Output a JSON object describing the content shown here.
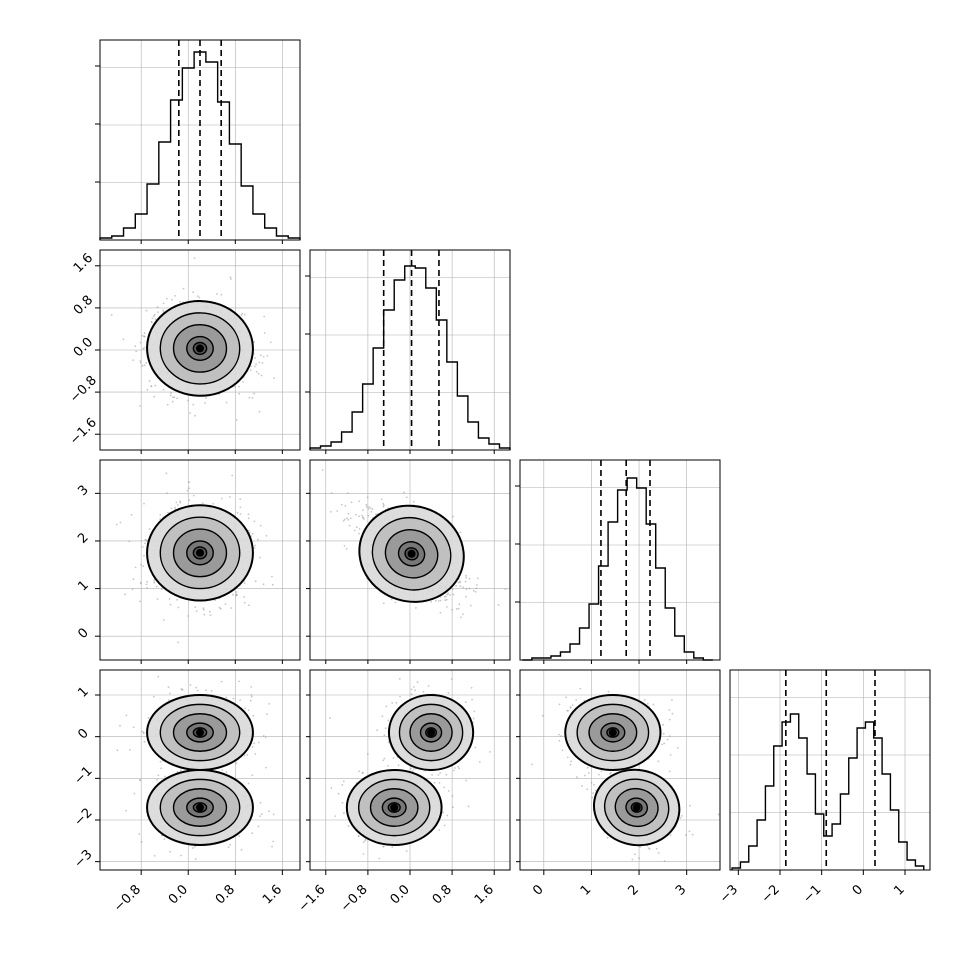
{
  "chart_data": {
    "type": "corner",
    "n_params": 4,
    "grid": true,
    "colors": {
      "line": "#000000",
      "grid": "#b0b0b0",
      "points": "#999999",
      "bins": [
        "#f2f2f2",
        "#d9d9d9",
        "#bdbdbd",
        "#969696",
        "#737373",
        "#525252",
        "#252525"
      ]
    },
    "axes": [
      {
        "ticks": [
          -0.8,
          0.0,
          0.8,
          1.6
        ],
        "tick_labels": [
          "−0.8",
          "0.0",
          "0.8",
          "1.6"
        ],
        "range": [
          -1.5,
          1.9
        ]
      },
      {
        "ticks": [
          -1.6,
          -0.8,
          0.0,
          0.8,
          1.6
        ],
        "tick_labels": [
          "−1.6",
          "−0.8",
          "0.0",
          "0.8",
          "1.6"
        ],
        "range": [
          -1.9,
          1.9
        ]
      },
      {
        "ticks": [
          0,
          1,
          2,
          3
        ],
        "tick_labels": [
          "0",
          "1",
          "2",
          "3"
        ],
        "range": [
          -0.5,
          3.7
        ]
      },
      {
        "ticks": [
          -3,
          -2,
          -1,
          0,
          1
        ],
        "tick_labels": [
          "−3",
          "−2",
          "−1",
          "0",
          "1"
        ],
        "range": [
          -3.2,
          1.6
        ]
      }
    ],
    "quantiles": [
      [
        -0.16,
        0.2,
        0.56
      ],
      [
        -0.5,
        0.03,
        0.55
      ],
      [
        1.2,
        1.73,
        2.23
      ],
      [
        -1.86,
        -0.89,
        0.28
      ]
    ],
    "histograms": [
      {
        "bins_centers": [
          -1.4,
          -1.2,
          -1.0,
          -0.8,
          -0.6,
          -0.4,
          -0.2,
          0.0,
          0.2,
          0.4,
          0.6,
          0.8,
          1.0,
          1.2,
          1.4,
          1.6,
          1.8
        ],
        "counts": [
          1,
          2,
          6,
          13,
          28,
          49,
          70,
          86,
          94,
          89,
          69,
          48,
          27,
          13,
          6,
          2,
          1
        ],
        "ylim": [
          0,
          100
        ]
      },
      {
        "bins_centers": [
          -1.8,
          -1.6,
          -1.4,
          -1.2,
          -1.0,
          -0.8,
          -0.6,
          -0.4,
          -0.2,
          0.0,
          0.2,
          0.4,
          0.6,
          0.8,
          1.0,
          1.2,
          1.4,
          1.6,
          1.8
        ],
        "counts": [
          1,
          2,
          4,
          9,
          19,
          33,
          51,
          70,
          85,
          92,
          91,
          81,
          65,
          44,
          27,
          14,
          6,
          3,
          1
        ],
        "ylim": [
          0,
          100
        ]
      },
      {
        "bins_centers": [
          -0.35,
          -0.15,
          0.05,
          0.25,
          0.45,
          0.65,
          0.85,
          1.05,
          1.25,
          1.45,
          1.65,
          1.85,
          2.05,
          2.25,
          2.45,
          2.65,
          2.85,
          3.05,
          3.25,
          3.45
        ],
        "counts": [
          0,
          1,
          1,
          2,
          4,
          8,
          16,
          28,
          47,
          69,
          85,
          91,
          86,
          68,
          46,
          26,
          12,
          4,
          1,
          0
        ],
        "ylim": [
          0,
          100
        ]
      },
      {
        "bins_centers": [
          -3.05,
          -2.85,
          -2.65,
          -2.45,
          -2.25,
          -2.05,
          -1.85,
          -1.65,
          -1.45,
          -1.25,
          -1.05,
          -0.85,
          -0.65,
          -0.45,
          -0.25,
          -0.05,
          0.15,
          0.35,
          0.55,
          0.75,
          0.95,
          1.15,
          1.35
        ],
        "counts": [
          1,
          4,
          12,
          25,
          42,
          62,
          74,
          78,
          66,
          48,
          28,
          17,
          23,
          38,
          56,
          71,
          74,
          66,
          48,
          30,
          14,
          5,
          2
        ],
        "ylim": [
          0,
          100
        ]
      }
    ],
    "densities": [
      {
        "row": 1,
        "col": 0,
        "modes": [
          [
            0.2,
            0.03,
            0.45,
            0.45,
            -0.05
          ]
        ]
      },
      {
        "row": 2,
        "col": 0,
        "modes": [
          [
            0.2,
            1.75,
            0.45,
            0.5,
            0.0
          ]
        ]
      },
      {
        "row": 2,
        "col": 1,
        "modes": [
          [
            0.03,
            1.73,
            0.5,
            0.5,
            -0.5
          ]
        ]
      },
      {
        "row": 3,
        "col": 0,
        "modes": [
          [
            0.2,
            0.1,
            0.45,
            0.45,
            0.0
          ],
          [
            0.2,
            -1.7,
            0.45,
            0.45,
            0.0
          ]
        ]
      },
      {
        "row": 3,
        "col": 1,
        "modes": [
          [
            0.4,
            0.1,
            0.4,
            0.45,
            0.0
          ],
          [
            -0.3,
            -1.7,
            0.45,
            0.45,
            0.0
          ]
        ]
      },
      {
        "row": 3,
        "col": 2,
        "modes": [
          [
            1.45,
            0.1,
            0.5,
            0.45,
            0.0
          ],
          [
            1.95,
            -1.7,
            0.45,
            0.45,
            -0.3
          ]
        ]
      }
    ]
  }
}
